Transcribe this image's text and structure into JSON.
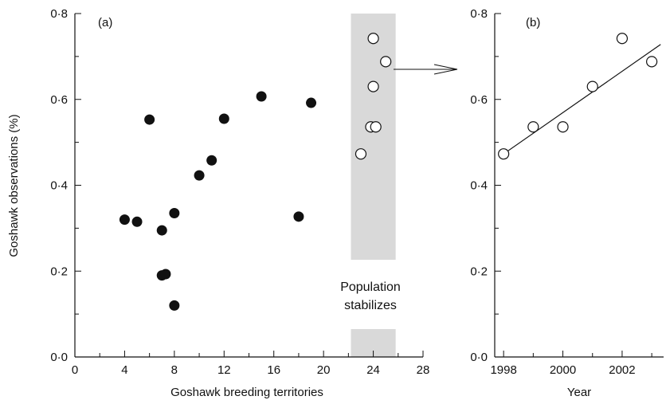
{
  "chart_data": [
    {
      "type": "scatter",
      "panel_label": "(a)",
      "xlabel": "Goshawk breeding territories",
      "ylabel": "Goshawk observations (%)",
      "xlim": [
        0,
        28
      ],
      "ylim": [
        0,
        0.8
      ],
      "x_ticks": [
        "0",
        "4",
        "8",
        "12",
        "16",
        "20",
        "24",
        "28"
      ],
      "y_ticks": [
        "0·0",
        "0·2",
        "0·4",
        "0·6",
        "0·8"
      ],
      "grid": false,
      "series": [
        {
          "marker": "filled-circle",
          "points": [
            {
              "x": 4,
              "y": 0.32
            },
            {
              "x": 5,
              "y": 0.315
            },
            {
              "x": 6,
              "y": 0.553
            },
            {
              "x": 7,
              "y": 0.295
            },
            {
              "x": 7,
              "y": 0.19
            },
            {
              "x": 7.3,
              "y": 0.193
            },
            {
              "x": 8,
              "y": 0.335
            },
            {
              "x": 8,
              "y": 0.12
            },
            {
              "x": 10,
              "y": 0.423
            },
            {
              "x": 11,
              "y": 0.458
            },
            {
              "x": 12,
              "y": 0.555
            },
            {
              "x": 15,
              "y": 0.607
            },
            {
              "x": 18,
              "y": 0.327
            },
            {
              "x": 19,
              "y": 0.592
            }
          ]
        },
        {
          "marker": "open-circle",
          "points": [
            {
              "x": 23,
              "y": 0.473
            },
            {
              "x": 23.8,
              "y": 0.536
            },
            {
              "x": 24.2,
              "y": 0.536
            },
            {
              "x": 24,
              "y": 0.63
            },
            {
              "x": 24,
              "y": 0.742
            },
            {
              "x": 25,
              "y": 0.688
            }
          ]
        }
      ],
      "highlight_band": {
        "x_range": [
          22.2,
          25.8
        ],
        "color": "#d9d9d9"
      },
      "annotation": [
        "Population",
        "stabilizes"
      ]
    },
    {
      "type": "scatter",
      "panel_label": "(b)",
      "xlabel": "Year",
      "ylabel": "",
      "xlim": [
        1997.7,
        2003.4
      ],
      "ylim": [
        0,
        0.8
      ],
      "x_ticks": [
        "1998",
        "2000",
        "2002"
      ],
      "y_ticks": [
        "0·0",
        "0·2",
        "0·4",
        "0·6",
        "0·8"
      ],
      "grid": false,
      "series": [
        {
          "marker": "open-circle",
          "points": [
            {
              "x": 1998,
              "y": 0.473
            },
            {
              "x": 1999,
              "y": 0.536
            },
            {
              "x": 2000,
              "y": 0.536
            },
            {
              "x": 2001,
              "y": 0.63
            },
            {
              "x": 2002,
              "y": 0.742
            },
            {
              "x": 2003,
              "y": 0.688
            }
          ]
        }
      ],
      "fit_line": {
        "x": [
          1998,
          2003.3
        ],
        "y": [
          0.473,
          0.728
        ]
      }
    }
  ],
  "colors": {
    "band": "#d9d9d9",
    "ink": "#111111"
  }
}
